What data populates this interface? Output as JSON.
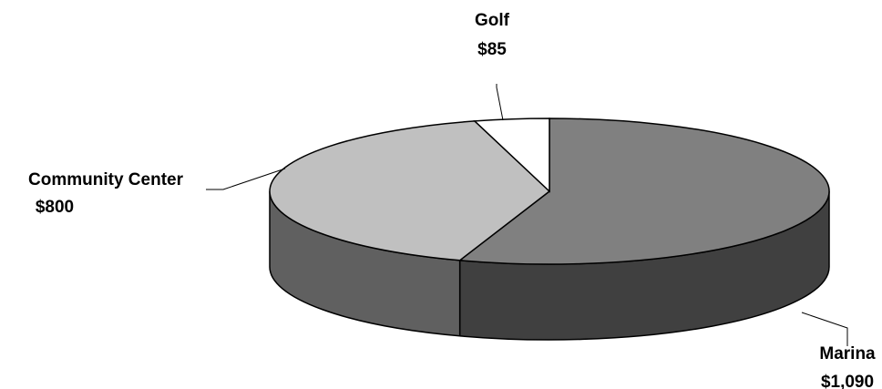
{
  "chart_data": {
    "type": "pie",
    "title": "",
    "style": "3d",
    "unit_prefix": "$",
    "slices": [
      {
        "name": "Marina",
        "value": 1090,
        "value_label": "$1,090",
        "color": "#808080",
        "side_color": "#404040"
      },
      {
        "name": "Community Center",
        "value": 800,
        "value_label": "$800",
        "color": "#c0c0c0",
        "side_color": "#606060"
      },
      {
        "name": "Golf",
        "value": 85,
        "value_label": "$85",
        "color": "#ffffff",
        "side_color": "#d0d0d0"
      }
    ],
    "legend": "none",
    "labels": "outside-with-leader-lines"
  }
}
